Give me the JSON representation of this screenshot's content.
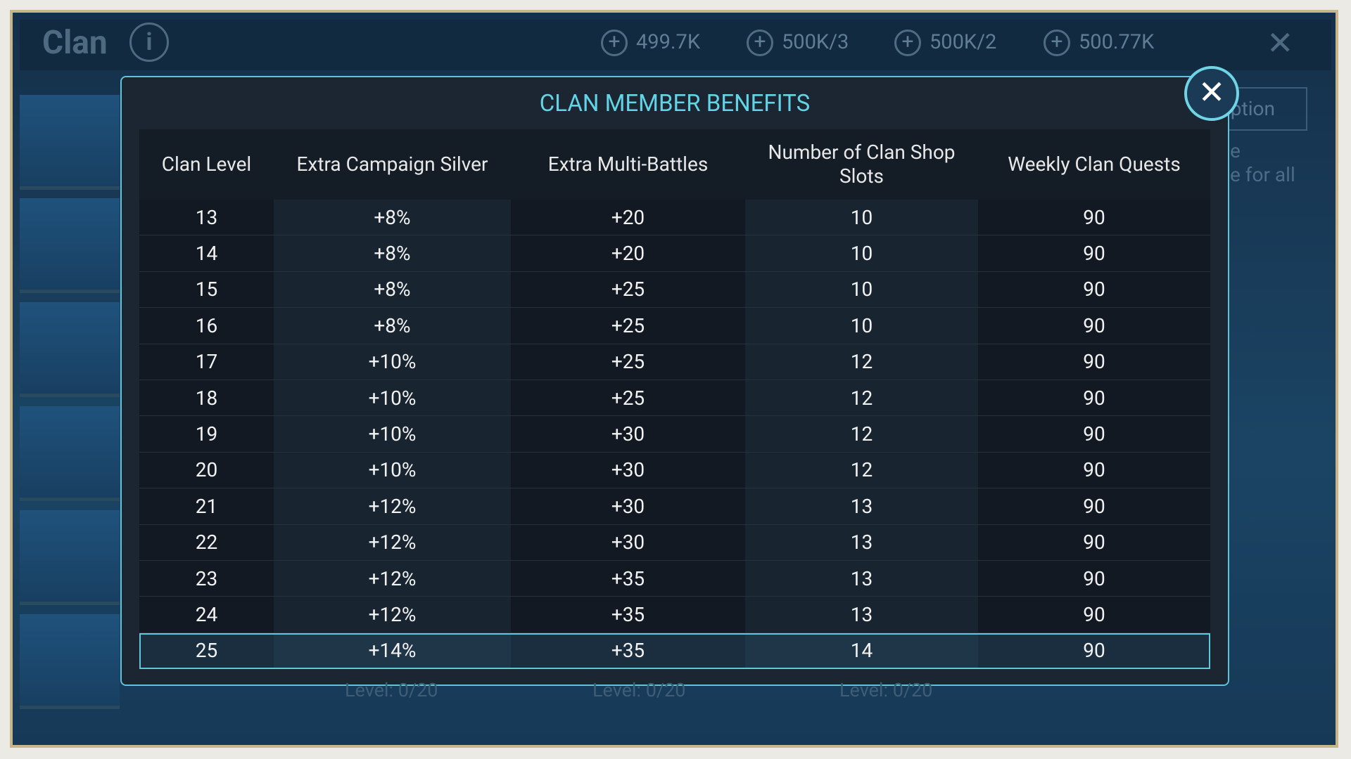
{
  "header": {
    "title": "Clan",
    "currencies": [
      "499.7K",
      "500K/3",
      "500K/2",
      "500.77K"
    ]
  },
  "background": {
    "button": "iption",
    "lines": [
      "e",
      "e for all"
    ],
    "levels": [
      "Level: 0/20",
      "Level: 0/20",
      "Level: 0/20"
    ]
  },
  "modal": {
    "title": "CLAN MEMBER BENEFITS",
    "table": {
      "columns": [
        "Clan Level",
        "Extra Campaign Silver",
        "Extra Multi-Battles",
        "Number of Clan Shop Slots",
        "Weekly Clan Quests"
      ],
      "rows": [
        [
          "13",
          "+8%",
          "+20",
          "10",
          "90"
        ],
        [
          "14",
          "+8%",
          "+20",
          "10",
          "90"
        ],
        [
          "15",
          "+8%",
          "+25",
          "10",
          "90"
        ],
        [
          "16",
          "+8%",
          "+25",
          "10",
          "90"
        ],
        [
          "17",
          "+10%",
          "+25",
          "12",
          "90"
        ],
        [
          "18",
          "+10%",
          "+25",
          "12",
          "90"
        ],
        [
          "19",
          "+10%",
          "+30",
          "12",
          "90"
        ],
        [
          "20",
          "+10%",
          "+30",
          "12",
          "90"
        ],
        [
          "21",
          "+12%",
          "+30",
          "13",
          "90"
        ],
        [
          "22",
          "+12%",
          "+30",
          "13",
          "90"
        ],
        [
          "23",
          "+12%",
          "+35",
          "13",
          "90"
        ],
        [
          "24",
          "+12%",
          "+35",
          "13",
          "90"
        ],
        [
          "25",
          "+14%",
          "+35",
          "14",
          "90"
        ]
      ]
    }
  }
}
